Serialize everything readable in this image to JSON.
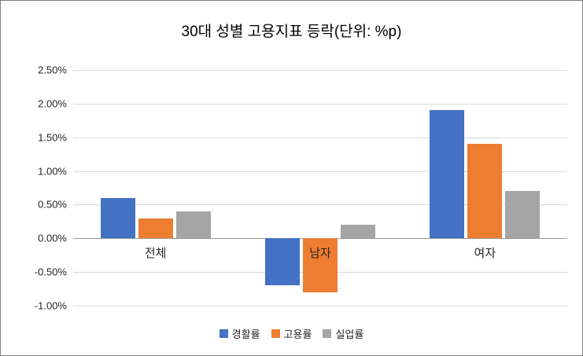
{
  "chart_data": {
    "type": "bar",
    "title": "30대 성별 고용지표 등락(단위: %p)",
    "categories": [
      "전체",
      "남자",
      "여자"
    ],
    "series": [
      {
        "name": "경활률",
        "color": "#4472c4",
        "values": [
          0.6,
          -0.7,
          1.9
        ]
      },
      {
        "name": "고용률",
        "color": "#ed7d31",
        "values": [
          0.3,
          -0.8,
          1.4
        ]
      },
      {
        "name": "실업률",
        "color": "#a5a5a5",
        "values": [
          0.4,
          0.2,
          0.7
        ]
      }
    ],
    "y_axis": {
      "min": -1.0,
      "max": 2.5,
      "step": 0.5,
      "tick_labels": [
        "2.50%",
        "2.00%",
        "1.50%",
        "1.00%",
        "0.50%",
        "0.00%",
        "-0.50%",
        "-1.00%"
      ]
    },
    "grid": true,
    "legend_position": "bottom",
    "colors": {
      "gridline": "#d9d9d9",
      "axis_line": "#9a9a9a",
      "border": "#7f7f7f"
    }
  }
}
